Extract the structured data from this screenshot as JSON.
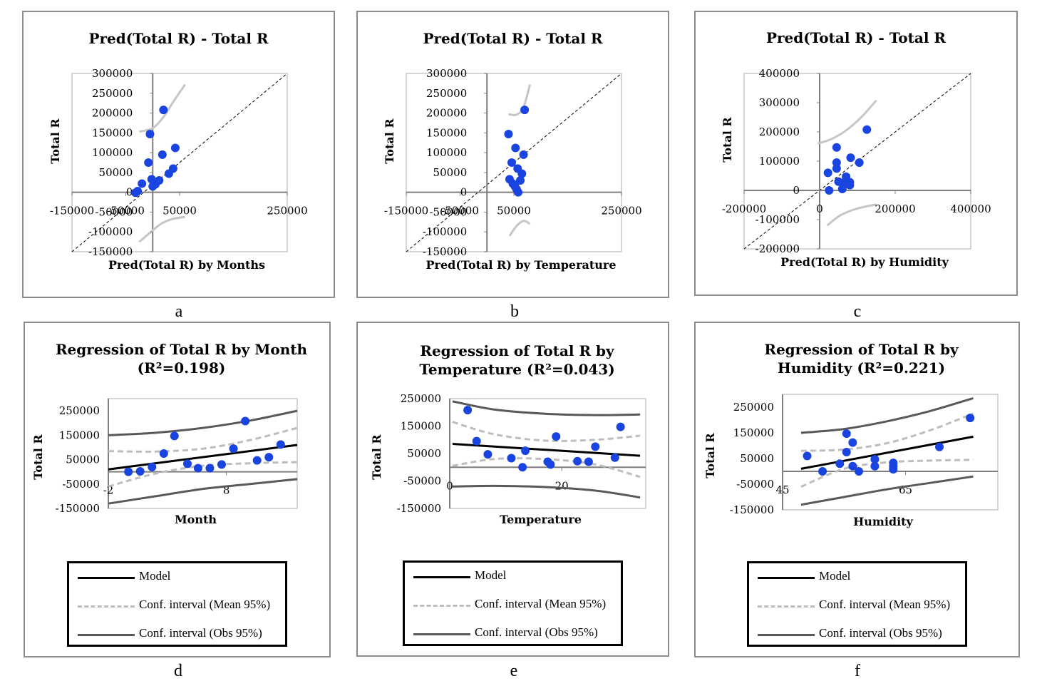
{
  "colors": {
    "point": "#1a44e0",
    "model": "#000000",
    "mean_ci": "#bdbdbd",
    "obs_ci": "#595959",
    "pred_ci": "#c6c6c6",
    "frame": "#8c8c8c"
  },
  "captions": {
    "a": "a",
    "b": "b",
    "c": "c",
    "d": "d",
    "e": "e",
    "f": "f"
  },
  "legend": {
    "model": "Model",
    "mean": "Conf. interval (Mean 95%)",
    "obs": "Conf. interval (Obs 95%)"
  },
  "chart_data": [
    {
      "id": "a",
      "type": "scatter",
      "title": "Pred(Total R) - Total R",
      "xlabel": "Pred(Total R) by Months",
      "ylabel": "Total R",
      "xlim": [
        -150000,
        250000
      ],
      "ylim": [
        -150000,
        300000
      ],
      "xticks": [
        "-150000",
        "-50000",
        "50000",
        "250000"
      ],
      "yticks": [
        "300000",
        "250000",
        "200000",
        "150000",
        "100000",
        "50000",
        "0",
        "-50000",
        "-100000",
        "-150000"
      ],
      "diagonal": true,
      "points": [
        [
          20000,
          208000
        ],
        [
          -5000,
          147000
        ],
        [
          -8000,
          75000
        ],
        [
          42000,
          112000
        ],
        [
          18000,
          95000
        ],
        [
          38000,
          60000
        ],
        [
          30000,
          47000
        ],
        [
          -2000,
          33000
        ],
        [
          12000,
          30000
        ],
        [
          5000,
          20000
        ],
        [
          0,
          15000
        ],
        [
          -20000,
          22000
        ],
        [
          -28000,
          3000
        ],
        [
          -32000,
          -1000
        ]
      ],
      "upper_curve": [
        [
          -25000,
          153000
        ],
        [
          0,
          162000
        ],
        [
          20000,
          190000
        ],
        [
          40000,
          232000
        ],
        [
          60000,
          272000
        ]
      ],
      "lower_curve": [
        [
          -25000,
          -125000
        ],
        [
          -5000,
          -102000
        ],
        [
          15000,
          -80000
        ],
        [
          35000,
          -68000
        ],
        [
          60000,
          -62000
        ]
      ]
    },
    {
      "id": "b",
      "type": "scatter",
      "title": "Pred(Total R) - Total R",
      "xlabel": "Pred(Total R) by Temperature",
      "ylabel": "Total R",
      "xlim": [
        -150000,
        250000
      ],
      "ylim": [
        -150000,
        300000
      ],
      "xticks": [
        "-150000",
        "-50000",
        "50000",
        "250000"
      ],
      "yticks": [
        "300000",
        "250000",
        "200000",
        "150000",
        "100000",
        "50000",
        "0",
        "-50000",
        "-100000",
        "-150000"
      ],
      "diagonal": true,
      "points": [
        [
          70000,
          208000
        ],
        [
          40000,
          147000
        ],
        [
          53000,
          112000
        ],
        [
          68000,
          95000
        ],
        [
          46000,
          75000
        ],
        [
          57000,
          60000
        ],
        [
          65000,
          47000
        ],
        [
          42000,
          33000
        ],
        [
          62000,
          30000
        ],
        [
          48000,
          22000
        ],
        [
          52000,
          15000
        ],
        [
          55000,
          8000
        ],
        [
          58000,
          0
        ]
      ],
      "upper_curve": [
        [
          40000,
          197000
        ],
        [
          55000,
          196000
        ],
        [
          68000,
          215000
        ],
        [
          80000,
          272000
        ]
      ],
      "lower_curve": [
        [
          42000,
          -110000
        ],
        [
          55000,
          -85000
        ],
        [
          68000,
          -72000
        ],
        [
          80000,
          -80000
        ]
      ]
    },
    {
      "id": "c",
      "type": "scatter",
      "title": "Pred(Total R) - Total R",
      "xlabel": "Pred(Total R) by Humidity",
      "ylabel": "Total R",
      "xlim": [
        -200000,
        400000
      ],
      "ylim": [
        -200000,
        400000
      ],
      "xticks": [
        "-200000",
        "0",
        "200000",
        "400000"
      ],
      "yticks": [
        "400000",
        "300000",
        "200000",
        "100000",
        "0",
        "-100000",
        "-200000"
      ],
      "diagonal": true,
      "points": [
        [
          125000,
          208000
        ],
        [
          45000,
          147000
        ],
        [
          82000,
          112000
        ],
        [
          45000,
          95000
        ],
        [
          105000,
          95000
        ],
        [
          45000,
          75000
        ],
        [
          22000,
          60000
        ],
        [
          70000,
          47000
        ],
        [
          70000,
          35000
        ],
        [
          50000,
          30000
        ],
        [
          80000,
          28000
        ],
        [
          65000,
          20000
        ],
        [
          80000,
          18000
        ],
        [
          60000,
          5000
        ],
        [
          25000,
          0
        ]
      ],
      "upper_curve": [
        [
          -5000,
          160000
        ],
        [
          30000,
          175000
        ],
        [
          70000,
          205000
        ],
        [
          110000,
          250000
        ],
        [
          150000,
          308000
        ]
      ],
      "lower_curve": [
        [
          20000,
          -120000
        ],
        [
          55000,
          -85000
        ],
        [
          100000,
          -62000
        ],
        [
          150000,
          -48000
        ]
      ]
    },
    {
      "id": "d",
      "type": "regression",
      "title": "Regression of Total R by Month",
      "subtitle": "(R²=0.198)",
      "xlabel": "Month",
      "ylabel": "Total R",
      "xlim": [
        -2,
        14
      ],
      "ylim": [
        -150000,
        300000
      ],
      "xticks": [
        {
          "v": -2,
          "label": "-2"
        },
        {
          "v": 8,
          "label": "8"
        }
      ],
      "yticks": [
        {
          "v": 250000,
          "label": "250000"
        },
        {
          "v": 150000,
          "label": "150000"
        },
        {
          "v": 50000,
          "label": "50000"
        },
        {
          "v": -50000,
          "label": "-50000"
        },
        {
          "v": -150000,
          "label": "-150000"
        }
      ],
      "points": [
        [
          -0.3,
          0
        ],
        [
          0.7,
          2000
        ],
        [
          1.7,
          20000
        ],
        [
          2.7,
          75000
        ],
        [
          3.6,
          147000
        ],
        [
          4.7,
          33000
        ],
        [
          5.6,
          15000
        ],
        [
          6.6,
          15000
        ],
        [
          7.6,
          30000
        ],
        [
          8.6,
          95000
        ],
        [
          9.6,
          208000
        ],
        [
          10.6,
          47000
        ],
        [
          11.6,
          60000
        ],
        [
          12.6,
          112000
        ]
      ],
      "model": [
        [
          -2,
          10000
        ],
        [
          14,
          110000
        ]
      ],
      "mean_upper": [
        [
          -2,
          85000
        ],
        [
          2,
          83000
        ],
        [
          6,
          95000
        ],
        [
          10,
          130000
        ],
        [
          14,
          180000
        ]
      ],
      "mean_lower": [
        [
          -2,
          -60000
        ],
        [
          2,
          -7000
        ],
        [
          6,
          25000
        ],
        [
          10,
          35000
        ],
        [
          14,
          40000
        ]
      ],
      "obs_upper": [
        [
          -2,
          150000
        ],
        [
          2,
          160000
        ],
        [
          6,
          180000
        ],
        [
          10,
          210000
        ],
        [
          14,
          250000
        ]
      ],
      "obs_lower": [
        [
          -2,
          -130000
        ],
        [
          2,
          -100000
        ],
        [
          6,
          -70000
        ],
        [
          10,
          -50000
        ],
        [
          14,
          -30000
        ]
      ]
    },
    {
      "id": "e",
      "type": "regression",
      "title": "Regression of Total R by",
      "subtitle": "Temperature (R²=0.043)",
      "xlabel": "Temperature",
      "ylabel": "Total R",
      "xlim": [
        0,
        35
      ],
      "ylim": [
        -150000,
        250000
      ],
      "xticks": [
        {
          "v": 0,
          "label": "0"
        },
        {
          "v": 20,
          "label": "20"
        }
      ],
      "yticks": [
        {
          "v": 250000,
          "label": "250000"
        },
        {
          "v": 150000,
          "label": "150000"
        },
        {
          "v": 50000,
          "label": "50000"
        },
        {
          "v": -50000,
          "label": "-50000"
        },
        {
          "v": -150000,
          "label": "-150000"
        }
      ],
      "points": [
        [
          3.2,
          208000
        ],
        [
          4.8,
          95000
        ],
        [
          6.8,
          47000
        ],
        [
          11,
          33000
        ],
        [
          13,
          0
        ],
        [
          13.5,
          60000
        ],
        [
          17.5,
          20000
        ],
        [
          18,
          10000
        ],
        [
          19,
          112000
        ],
        [
          22.8,
          22000
        ],
        [
          24.8,
          20000
        ],
        [
          26,
          75000
        ],
        [
          29.5,
          35000
        ],
        [
          30.5,
          147000
        ]
      ],
      "model": [
        [
          0.5,
          85000
        ],
        [
          34,
          42000
        ]
      ],
      "mean_upper": [
        [
          0.5,
          165000
        ],
        [
          8,
          120000
        ],
        [
          17,
          97000
        ],
        [
          26,
          100000
        ],
        [
          34,
          115000
        ]
      ],
      "mean_lower": [
        [
          0.5,
          5000
        ],
        [
          8,
          30000
        ],
        [
          17,
          30000
        ],
        [
          26,
          10000
        ],
        [
          34,
          -35000
        ]
      ],
      "obs_upper": [
        [
          0.5,
          240000
        ],
        [
          8,
          210000
        ],
        [
          17,
          195000
        ],
        [
          26,
          190000
        ],
        [
          34,
          192000
        ]
      ],
      "obs_lower": [
        [
          0.5,
          -70000
        ],
        [
          8,
          -68000
        ],
        [
          17,
          -72000
        ],
        [
          26,
          -85000
        ],
        [
          34,
          -110000
        ]
      ]
    },
    {
      "id": "f",
      "type": "regression",
      "title": "Regression of Total R by",
      "subtitle": "Humidity (R²=0.221)",
      "xlabel": "Humidity",
      "ylabel": "Total R",
      "xlim": [
        45,
        80
      ],
      "ylim": [
        -150000,
        300000
      ],
      "xticks": [
        {
          "v": 45,
          "label": "45"
        },
        {
          "v": 65,
          "label": "65"
        }
      ],
      "yticks": [
        {
          "v": 250000,
          "label": "250000"
        },
        {
          "v": 150000,
          "label": "150000"
        },
        {
          "v": 50000,
          "label": "50000"
        },
        {
          "v": -50000,
          "label": "-50000"
        },
        {
          "v": -150000,
          "label": "-150000"
        }
      ],
      "points": [
        [
          49,
          60000
        ],
        [
          51.5,
          0
        ],
        [
          54.3,
          30000
        ],
        [
          55.4,
          147000
        ],
        [
          55.4,
          75000
        ],
        [
          56.4,
          112000
        ],
        [
          56.4,
          20000
        ],
        [
          57.4,
          0
        ],
        [
          60,
          47000
        ],
        [
          60,
          20000
        ],
        [
          63,
          33000
        ],
        [
          63,
          20000
        ],
        [
          63,
          8000
        ],
        [
          70.5,
          95000
        ],
        [
          75.5,
          208000
        ]
      ],
      "model": [
        [
          48,
          10000
        ],
        [
          76,
          135000
        ]
      ],
      "mean_upper": [
        [
          48,
          80000
        ],
        [
          55,
          85000
        ],
        [
          62,
          110000
        ],
        [
          69,
          160000
        ],
        [
          76,
          225000
        ]
      ],
      "mean_lower": [
        [
          48,
          -60000
        ],
        [
          55,
          10000
        ],
        [
          62,
          35000
        ],
        [
          69,
          42000
        ],
        [
          76,
          45000
        ]
      ],
      "obs_upper": [
        [
          48,
          150000
        ],
        [
          55,
          165000
        ],
        [
          62,
          195000
        ],
        [
          69,
          235000
        ],
        [
          76,
          285000
        ]
      ],
      "obs_lower": [
        [
          48,
          -130000
        ],
        [
          55,
          -100000
        ],
        [
          62,
          -70000
        ],
        [
          69,
          -45000
        ],
        [
          76,
          -20000
        ]
      ]
    }
  ]
}
